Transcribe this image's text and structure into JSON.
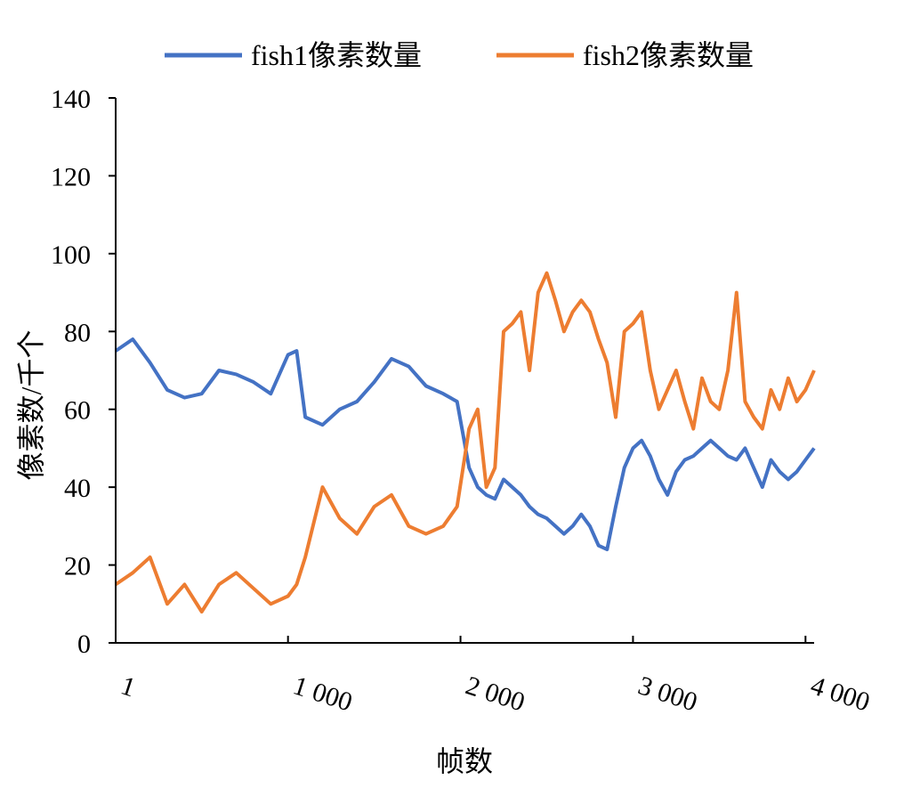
{
  "chart_data": {
    "type": "line",
    "title": "",
    "xlabel": "帧数",
    "ylabel": "像素数/千个",
    "xlim": [
      1,
      4050
    ],
    "ylim": [
      0,
      140
    ],
    "x_ticks": [
      {
        "value": 1,
        "label": "1"
      },
      {
        "value": 1000,
        "label": "1 000"
      },
      {
        "value": 2000,
        "label": "2 000"
      },
      {
        "value": 3000,
        "label": "3 000"
      },
      {
        "value": 4000,
        "label": "4 000"
      }
    ],
    "y_ticks": [
      {
        "value": 0,
        "label": "0"
      },
      {
        "value": 20,
        "label": "20"
      },
      {
        "value": 40,
        "label": "40"
      },
      {
        "value": 60,
        "label": "60"
      },
      {
        "value": 80,
        "label": "80"
      },
      {
        "value": 100,
        "label": "100"
      },
      {
        "value": 120,
        "label": "120"
      },
      {
        "value": 140,
        "label": "140"
      }
    ],
    "grid": false,
    "legend_position": "top",
    "x": [
      1,
      100,
      200,
      300,
      400,
      500,
      600,
      700,
      800,
      900,
      1000,
      1050,
      1100,
      1200,
      1300,
      1400,
      1500,
      1600,
      1700,
      1800,
      1900,
      1980,
      2050,
      2100,
      2150,
      2200,
      2250,
      2300,
      2350,
      2400,
      2450,
      2500,
      2550,
      2600,
      2650,
      2700,
      2750,
      2800,
      2850,
      2900,
      2950,
      3000,
      3050,
      3100,
      3150,
      3200,
      3250,
      3300,
      3350,
      3400,
      3450,
      3500,
      3550,
      3600,
      3650,
      3700,
      3750,
      3800,
      3850,
      3900,
      3950,
      4000,
      4050
    ],
    "series": [
      {
        "name": "fish1像素数量",
        "color": "#4472C4",
        "values": [
          75,
          78,
          72,
          65,
          63,
          64,
          70,
          69,
          67,
          64,
          74,
          75,
          58,
          56,
          60,
          62,
          67,
          73,
          71,
          66,
          64,
          62,
          45,
          40,
          38,
          37,
          42,
          40,
          38,
          35,
          33,
          32,
          30,
          28,
          30,
          33,
          30,
          25,
          24,
          35,
          45,
          50,
          52,
          48,
          42,
          38,
          44,
          47,
          48,
          50,
          52,
          50,
          48,
          47,
          50,
          45,
          40,
          47,
          44,
          42,
          44,
          47,
          50
        ]
      },
      {
        "name": "fish2像素数量",
        "color": "#ED7D31",
        "values": [
          15,
          18,
          22,
          10,
          15,
          8,
          15,
          18,
          14,
          10,
          12,
          15,
          22,
          40,
          32,
          28,
          35,
          38,
          30,
          28,
          30,
          35,
          55,
          60,
          40,
          45,
          80,
          82,
          85,
          70,
          90,
          95,
          88,
          80,
          85,
          88,
          85,
          78,
          72,
          58,
          80,
          82,
          85,
          70,
          60,
          65,
          70,
          62,
          55,
          68,
          62,
          60,
          70,
          90,
          62,
          58,
          55,
          65,
          60,
          68,
          62,
          65,
          70
        ]
      }
    ]
  }
}
